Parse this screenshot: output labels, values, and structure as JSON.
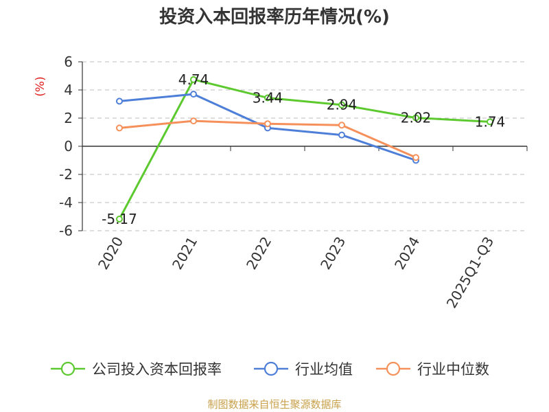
{
  "chart_data": {
    "type": "line",
    "title": "投资入本回报率历年情况(%)",
    "ylabel": "(%)",
    "categories": [
      "2020",
      "2021",
      "2022",
      "2023",
      "2024",
      "2025Q1-Q3"
    ],
    "ylim": [
      -6,
      6
    ],
    "yticks": [
      6,
      4,
      2,
      0,
      -2,
      -4,
      -6
    ],
    "grid": true,
    "legend_position": "bottom",
    "series": [
      {
        "name": "公司投入资本回报率",
        "color": "#5cc92f",
        "values": [
          -5.17,
          4.74,
          3.44,
          2.94,
          2.02,
          1.74
        ],
        "data_labels": [
          "-5.17",
          "4.74",
          "3.44",
          "2.94",
          "2.02",
          "1.74"
        ]
      },
      {
        "name": "行业均值",
        "color": "#4e7fd8",
        "values": [
          3.2,
          3.7,
          1.3,
          0.8,
          -1.0,
          null
        ]
      },
      {
        "name": "行业中位数",
        "color": "#f5905a",
        "values": [
          1.3,
          1.8,
          1.6,
          1.5,
          -0.8,
          null
        ]
      }
    ]
  },
  "source": "制图数据来自恒生聚源数据库"
}
